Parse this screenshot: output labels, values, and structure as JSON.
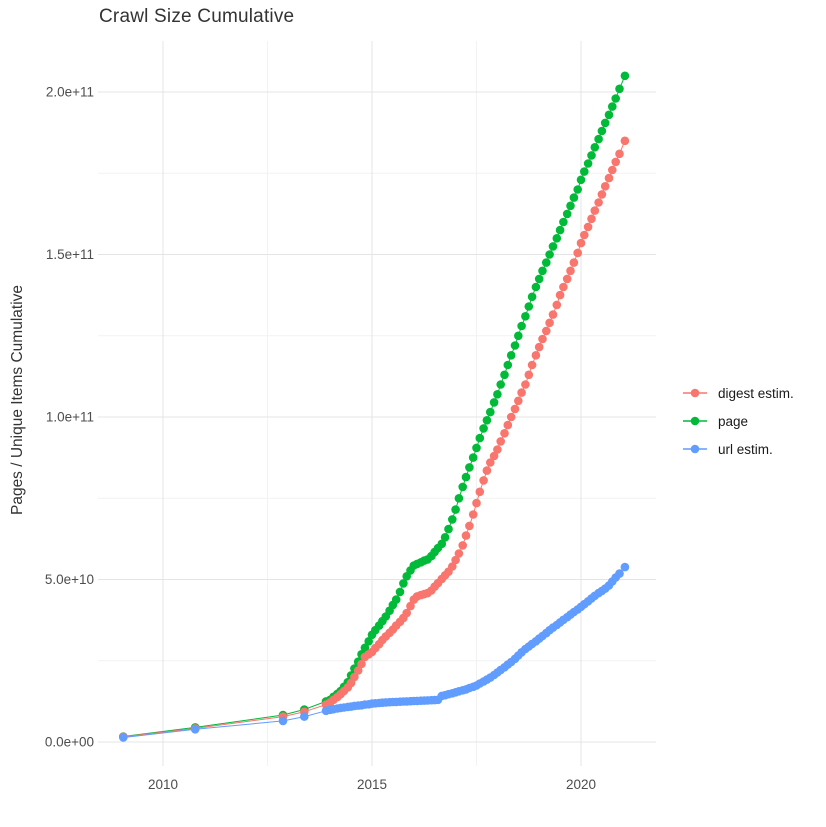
{
  "chart": {
    "title": "Crawl Size Cumulative",
    "ylabel": "Pages / Unique Items Cumulative",
    "xlabel": ""
  },
  "chart_data": {
    "type": "line",
    "title": "Crawl Size Cumulative",
    "xlabel": "",
    "ylabel": "Pages / Unique Items Cumulative",
    "legend_position": "right",
    "grid": "major and minor, light gray on white",
    "x_range_years": [
      2008.5,
      2021.8
    ],
    "y_range": [
      0,
      216000000000.0
    ],
    "value_unit": "billions (1e9)",
    "x_ticks": [
      {
        "label": "2010",
        "year": 2010
      },
      {
        "label": "2015",
        "year": 2015
      },
      {
        "label": "2020",
        "year": 2020
      }
    ],
    "x_minor_ticks": [
      2012.5,
      2017.5
    ],
    "y_ticks": [
      {
        "label": "0.0e+00",
        "value_billions": 0
      },
      {
        "label": "5.0e+10",
        "value_billions": 50
      },
      {
        "label": "1.0e+11",
        "value_billions": 100
      },
      {
        "label": "1.5e+11",
        "value_billions": 150
      },
      {
        "label": "2.0e+11",
        "value_billions": 200
      }
    ],
    "y_minor_ticks": [
      25,
      75,
      125,
      175
    ],
    "series": [
      {
        "name": "digest estim.",
        "color": "#F8766D",
        "points": [
          [
            2009.05,
            1.6
          ],
          [
            2010.77,
            4.2
          ],
          [
            2012.87,
            7.8
          ],
          [
            2013.38,
            9.3
          ],
          [
            2013.9,
            11.5
          ],
          [
            2014.0,
            12.2
          ],
          [
            2014.08,
            13.0
          ],
          [
            2014.17,
            13.8
          ],
          [
            2014.25,
            14.7
          ],
          [
            2014.33,
            15.7
          ],
          [
            2014.42,
            16.8
          ],
          [
            2014.5,
            18.2
          ],
          [
            2014.58,
            20.0
          ],
          [
            2014.67,
            22.0
          ],
          [
            2014.75,
            24.0
          ],
          [
            2014.83,
            26.2
          ],
          [
            2014.92,
            27.0
          ],
          [
            2015.0,
            27.7
          ],
          [
            2015.08,
            28.9
          ],
          [
            2015.17,
            30.1
          ],
          [
            2015.25,
            31.4
          ],
          [
            2015.33,
            32.5
          ],
          [
            2015.42,
            33.6
          ],
          [
            2015.5,
            34.6
          ],
          [
            2015.58,
            35.8
          ],
          [
            2015.67,
            37.0
          ],
          [
            2015.75,
            38.2
          ],
          [
            2015.83,
            39.7
          ],
          [
            2015.92,
            41.8
          ],
          [
            2016.0,
            43.8
          ],
          [
            2016.08,
            44.8
          ],
          [
            2016.17,
            45.2
          ],
          [
            2016.25,
            45.5
          ],
          [
            2016.33,
            45.8
          ],
          [
            2016.42,
            46.6
          ],
          [
            2016.5,
            47.8
          ],
          [
            2016.58,
            48.9
          ],
          [
            2016.67,
            50.2
          ],
          [
            2016.75,
            51.3
          ],
          [
            2016.83,
            52.4
          ],
          [
            2016.92,
            54.0
          ],
          [
            2017.0,
            56.0
          ],
          [
            2017.08,
            58.0
          ],
          [
            2017.17,
            60.5
          ],
          [
            2017.25,
            63.5
          ],
          [
            2017.33,
            66.5
          ],
          [
            2017.42,
            70.0
          ],
          [
            2017.5,
            73.5
          ],
          [
            2017.58,
            77.0
          ],
          [
            2017.67,
            80.5
          ],
          [
            2017.75,
            83.5
          ],
          [
            2017.83,
            86.0
          ],
          [
            2017.92,
            88.0
          ],
          [
            2018.0,
            90.0
          ],
          [
            2018.08,
            92.5
          ],
          [
            2018.17,
            95.0
          ],
          [
            2018.25,
            97.5
          ],
          [
            2018.33,
            100.0
          ],
          [
            2018.42,
            102.5
          ],
          [
            2018.5,
            105.0
          ],
          [
            2018.58,
            107.5
          ],
          [
            2018.67,
            110.0
          ],
          [
            2018.75,
            113.0
          ],
          [
            2018.83,
            116.0
          ],
          [
            2018.92,
            119.0
          ],
          [
            2019.0,
            121.5
          ],
          [
            2019.08,
            124.0
          ],
          [
            2019.17,
            126.5
          ],
          [
            2019.25,
            129.0
          ],
          [
            2019.33,
            131.5
          ],
          [
            2019.42,
            134.5
          ],
          [
            2019.5,
            137.5
          ],
          [
            2019.58,
            140.0
          ],
          [
            2019.67,
            142.5
          ],
          [
            2019.75,
            145.0
          ],
          [
            2019.83,
            147.5
          ],
          [
            2019.92,
            150.5
          ],
          [
            2020.0,
            153.5
          ],
          [
            2020.08,
            156.0
          ],
          [
            2020.17,
            158.5
          ],
          [
            2020.25,
            161.0
          ],
          [
            2020.33,
            163.5
          ],
          [
            2020.42,
            166.0
          ],
          [
            2020.5,
            168.5
          ],
          [
            2020.58,
            171.0
          ],
          [
            2020.67,
            173.5
          ],
          [
            2020.75,
            176.0
          ],
          [
            2020.83,
            178.5
          ],
          [
            2020.92,
            181.0
          ],
          [
            2021.05,
            185.0
          ]
        ]
      },
      {
        "name": "page",
        "color": "#00BA38",
        "points": [
          [
            2009.05,
            1.7
          ],
          [
            2010.77,
            4.5
          ],
          [
            2012.87,
            8.3
          ],
          [
            2013.38,
            10.0
          ],
          [
            2013.9,
            12.5
          ],
          [
            2014.0,
            13.0
          ],
          [
            2014.08,
            13.9
          ],
          [
            2014.17,
            14.8
          ],
          [
            2014.25,
            15.7
          ],
          [
            2014.33,
            17.0
          ],
          [
            2014.42,
            18.4
          ],
          [
            2014.5,
            20.5
          ],
          [
            2014.58,
            22.6
          ],
          [
            2014.67,
            24.7
          ],
          [
            2014.75,
            27.0
          ],
          [
            2014.83,
            29.0
          ],
          [
            2014.92,
            31.0
          ],
          [
            2015.0,
            33.0
          ],
          [
            2015.08,
            34.4
          ],
          [
            2015.17,
            35.8
          ],
          [
            2015.25,
            37.2
          ],
          [
            2015.33,
            38.6
          ],
          [
            2015.42,
            40.4
          ],
          [
            2015.5,
            42.2
          ],
          [
            2015.58,
            43.8
          ],
          [
            2015.67,
            46.2
          ],
          [
            2015.75,
            48.8
          ],
          [
            2015.83,
            51.0
          ],
          [
            2015.92,
            52.8
          ],
          [
            2016.0,
            54.3
          ],
          [
            2016.08,
            54.8
          ],
          [
            2016.17,
            55.3
          ],
          [
            2016.25,
            55.8
          ],
          [
            2016.33,
            56.2
          ],
          [
            2016.42,
            57.2
          ],
          [
            2016.5,
            58.5
          ],
          [
            2016.58,
            59.7
          ],
          [
            2016.67,
            61.0
          ],
          [
            2016.75,
            63.0
          ],
          [
            2016.83,
            65.5
          ],
          [
            2016.92,
            68.5
          ],
          [
            2017.0,
            71.5
          ],
          [
            2017.08,
            75.0
          ],
          [
            2017.17,
            78.5
          ],
          [
            2017.25,
            81.5
          ],
          [
            2017.33,
            84.5
          ],
          [
            2017.42,
            87.5
          ],
          [
            2017.5,
            90.5
          ],
          [
            2017.58,
            93.5
          ],
          [
            2017.67,
            96.5
          ],
          [
            2017.75,
            99.0
          ],
          [
            2017.83,
            101.5
          ],
          [
            2017.92,
            104.5
          ],
          [
            2018.0,
            107.0
          ],
          [
            2018.08,
            110.0
          ],
          [
            2018.17,
            113.0
          ],
          [
            2018.25,
            116.0
          ],
          [
            2018.33,
            119.0
          ],
          [
            2018.42,
            122.0
          ],
          [
            2018.5,
            125.0
          ],
          [
            2018.58,
            128.0
          ],
          [
            2018.67,
            131.0
          ],
          [
            2018.75,
            134.0
          ],
          [
            2018.83,
            137.0
          ],
          [
            2018.92,
            140.0
          ],
          [
            2019.0,
            142.5
          ],
          [
            2019.08,
            145.0
          ],
          [
            2019.17,
            147.5
          ],
          [
            2019.25,
            150.0
          ],
          [
            2019.33,
            152.5
          ],
          [
            2019.42,
            155.0
          ],
          [
            2019.5,
            157.5
          ],
          [
            2019.58,
            160.0
          ],
          [
            2019.67,
            162.5
          ],
          [
            2019.75,
            165.0
          ],
          [
            2019.83,
            167.5
          ],
          [
            2019.92,
            170.0
          ],
          [
            2020.0,
            173.0
          ],
          [
            2020.08,
            175.5
          ],
          [
            2020.17,
            178.0
          ],
          [
            2020.25,
            180.5
          ],
          [
            2020.33,
            183.0
          ],
          [
            2020.42,
            185.5
          ],
          [
            2020.5,
            188.0
          ],
          [
            2020.58,
            190.5
          ],
          [
            2020.67,
            193.0
          ],
          [
            2020.75,
            195.5
          ],
          [
            2020.83,
            198.0
          ],
          [
            2020.92,
            201.0
          ],
          [
            2021.05,
            205.0
          ]
        ]
      },
      {
        "name": "url estim.",
        "color": "#619CFF",
        "points": [
          [
            2009.05,
            1.4
          ],
          [
            2010.77,
            3.9
          ],
          [
            2012.87,
            6.5
          ],
          [
            2013.38,
            7.8
          ],
          [
            2013.9,
            9.6
          ],
          [
            2014.0,
            9.9
          ],
          [
            2014.08,
            10.1
          ],
          [
            2014.17,
            10.3
          ],
          [
            2014.25,
            10.5
          ],
          [
            2014.33,
            10.6
          ],
          [
            2014.42,
            10.8
          ],
          [
            2014.5,
            10.9
          ],
          [
            2014.58,
            11.1
          ],
          [
            2014.67,
            11.2
          ],
          [
            2014.75,
            11.3
          ],
          [
            2014.83,
            11.5
          ],
          [
            2014.92,
            11.6
          ],
          [
            2015.0,
            11.8
          ],
          [
            2015.08,
            11.9
          ],
          [
            2015.17,
            12.0
          ],
          [
            2015.25,
            12.1
          ],
          [
            2015.33,
            12.2
          ],
          [
            2015.42,
            12.25
          ],
          [
            2015.5,
            12.3
          ],
          [
            2015.58,
            12.35
          ],
          [
            2015.67,
            12.4
          ],
          [
            2015.75,
            12.45
          ],
          [
            2015.83,
            12.5
          ],
          [
            2015.92,
            12.55
          ],
          [
            2016.0,
            12.6
          ],
          [
            2016.08,
            12.65
          ],
          [
            2016.17,
            12.7
          ],
          [
            2016.25,
            12.75
          ],
          [
            2016.33,
            12.8
          ],
          [
            2016.42,
            12.85
          ],
          [
            2016.5,
            12.9
          ],
          [
            2016.58,
            13.0
          ],
          [
            2016.67,
            14.2
          ],
          [
            2016.75,
            14.4
          ],
          [
            2016.83,
            14.7
          ],
          [
            2016.92,
            15.0
          ],
          [
            2017.0,
            15.3
          ],
          [
            2017.08,
            15.6
          ],
          [
            2017.17,
            15.9
          ],
          [
            2017.25,
            16.2
          ],
          [
            2017.33,
            16.6
          ],
          [
            2017.42,
            17.0
          ],
          [
            2017.5,
            17.4
          ],
          [
            2017.58,
            18.0
          ],
          [
            2017.67,
            18.6
          ],
          [
            2017.75,
            19.2
          ],
          [
            2017.83,
            19.8
          ],
          [
            2017.92,
            20.6
          ],
          [
            2018.0,
            21.4
          ],
          [
            2018.08,
            22.2
          ],
          [
            2018.17,
            23.0
          ],
          [
            2018.25,
            23.8
          ],
          [
            2018.33,
            24.6
          ],
          [
            2018.42,
            25.6
          ],
          [
            2018.5,
            26.6
          ],
          [
            2018.58,
            27.6
          ],
          [
            2018.67,
            28.6
          ],
          [
            2018.75,
            29.4
          ],
          [
            2018.83,
            30.2
          ],
          [
            2018.92,
            31.0
          ],
          [
            2019.0,
            31.8
          ],
          [
            2019.08,
            32.6
          ],
          [
            2019.17,
            33.5
          ],
          [
            2019.25,
            34.4
          ],
          [
            2019.33,
            35.2
          ],
          [
            2019.42,
            36.0
          ],
          [
            2019.5,
            36.8
          ],
          [
            2019.58,
            37.6
          ],
          [
            2019.67,
            38.4
          ],
          [
            2019.75,
            39.2
          ],
          [
            2019.83,
            40.0
          ],
          [
            2019.92,
            40.8
          ],
          [
            2020.0,
            41.6
          ],
          [
            2020.08,
            42.4
          ],
          [
            2020.17,
            43.3
          ],
          [
            2020.25,
            44.2
          ],
          [
            2020.33,
            45.0
          ],
          [
            2020.42,
            45.8
          ],
          [
            2020.5,
            46.5
          ],
          [
            2020.58,
            47.2
          ],
          [
            2020.67,
            48.2
          ],
          [
            2020.75,
            49.4
          ],
          [
            2020.83,
            50.6
          ],
          [
            2020.92,
            51.8
          ],
          [
            2021.05,
            53.8
          ]
        ]
      }
    ],
    "colors": {
      "grid_major": "#E4E4E4",
      "grid_minor": "#F2F2F2",
      "tick_label": "#4D4D4D",
      "title_text": "#333333"
    },
    "draw_order": [
      "page",
      "digest estim.",
      "url estim."
    ]
  }
}
